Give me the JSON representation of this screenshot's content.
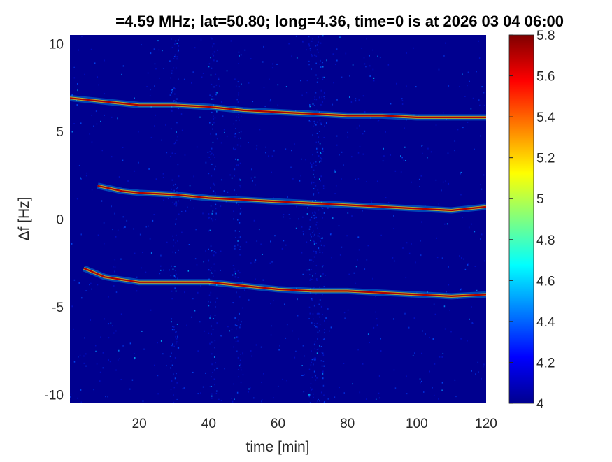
{
  "chart_data": {
    "type": "heatmap",
    "title": "=4.59 MHz;  lat=50.80; long=4.36, time=0 is at 2026 03 04 06:00",
    "xlabel": "time [min]",
    "ylabel": "Δf [Hz]",
    "xlim": [
      0,
      120
    ],
    "ylim": [
      -10.5,
      10.5
    ],
    "xticks": [
      20,
      40,
      60,
      80,
      100,
      120
    ],
    "xtick_labels": [
      "20",
      "40",
      "60",
      "80",
      "100",
      "120"
    ],
    "yticks": [
      10,
      5,
      0,
      -5,
      -10
    ],
    "ytick_labels": [
      "10",
      "5",
      "0",
      "-5",
      "-10"
    ],
    "colormap": "jet",
    "clim": [
      4,
      5.8
    ],
    "colorbar_ticks": [
      4,
      4.2,
      4.4,
      4.6,
      4.8,
      5,
      5.2,
      5.4,
      5.6,
      5.8
    ],
    "colorbar_tick_labels": [
      "4",
      "4.2",
      "4.4",
      "4.6",
      "4.8",
      "5",
      "5.2",
      "5.4",
      "5.6",
      "5.8"
    ],
    "background_color": "#00008f",
    "grid": false,
    "traces": [
      {
        "time": [
          0,
          10,
          20,
          30,
          40,
          50,
          60,
          70,
          80,
          90,
          100,
          110,
          120
        ],
        "df": [
          6.9,
          6.7,
          6.5,
          6.5,
          6.4,
          6.2,
          6.1,
          6.0,
          5.9,
          5.9,
          5.8,
          5.8,
          5.8
        ]
      },
      {
        "time": [
          8,
          15,
          20,
          30,
          40,
          50,
          60,
          70,
          80,
          90,
          100,
          110,
          120
        ],
        "df": [
          1.9,
          1.6,
          1.5,
          1.4,
          1.2,
          1.1,
          1.0,
          0.9,
          0.8,
          0.7,
          0.6,
          0.5,
          0.7
        ]
      },
      {
        "time": [
          4,
          10,
          20,
          30,
          40,
          50,
          60,
          70,
          80,
          90,
          100,
          110,
          120
        ],
        "df": [
          -2.8,
          -3.3,
          -3.6,
          -3.6,
          -3.6,
          -3.8,
          -4.0,
          -4.1,
          -4.1,
          -4.2,
          -4.3,
          -4.4,
          -4.3
        ]
      }
    ]
  }
}
